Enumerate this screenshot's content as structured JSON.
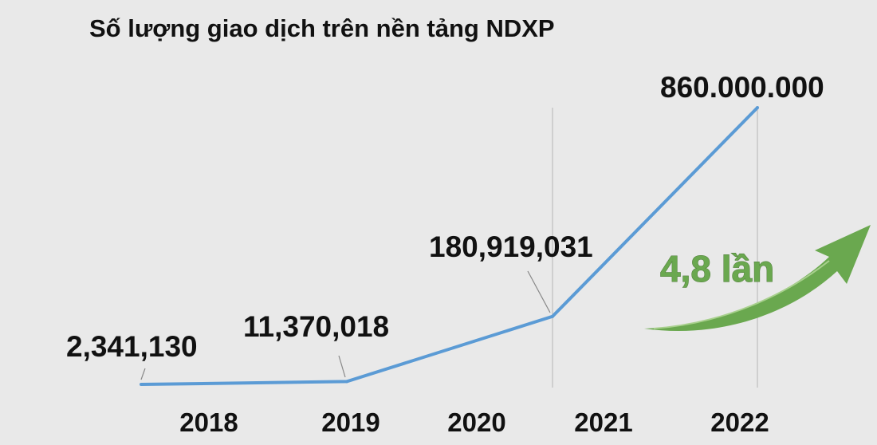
{
  "chart_data": {
    "type": "line",
    "title": "Số lượng giao dịch trên nền tảng NDXP",
    "x_tick_labels": [
      "2018",
      "2019",
      "2020",
      "2021",
      "2022"
    ],
    "x": [
      "2018",
      "2019",
      "2021",
      "2022"
    ],
    "values": [
      2341130,
      11370018,
      180919031,
      860000000
    ],
    "data_labels": [
      "2,341,130",
      "11,370,018",
      "180,919,031",
      "860.000.000"
    ],
    "ylim": [
      0,
      860000000
    ],
    "grid": "vertical lines at 2021 and 2022",
    "annotation": "4,8 lần",
    "colors": {
      "line": "#5b9bd5",
      "annotation": "#6aa84f",
      "background": "#e9e9e9"
    }
  }
}
